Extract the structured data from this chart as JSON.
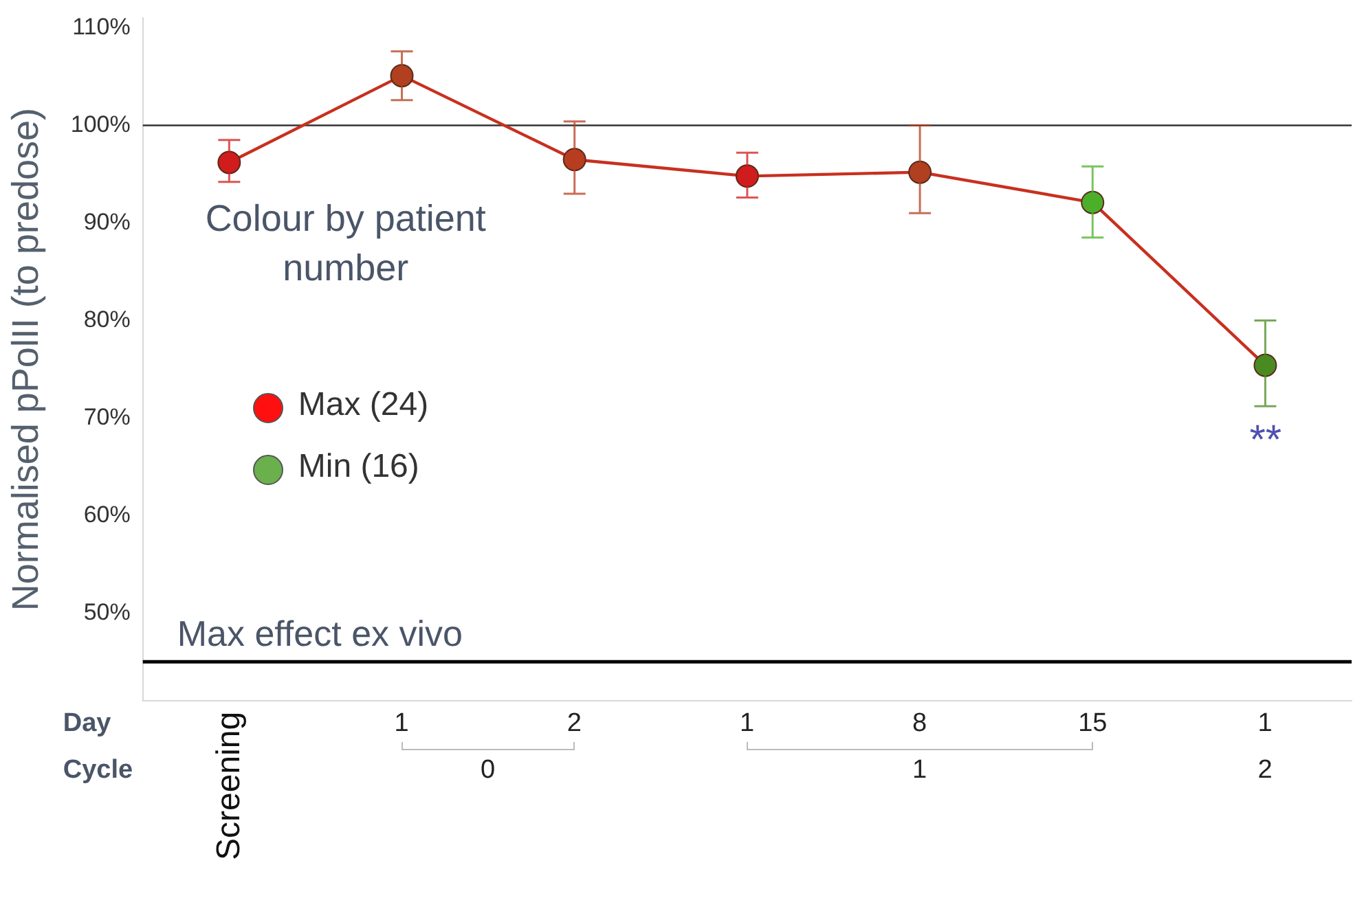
{
  "chart_data": {
    "type": "line",
    "ylabel": "Normalised pPolII (to predose)",
    "legend_title": "Colour by patient number",
    "categories": [
      "Screening",
      "1",
      "2",
      "1",
      "8",
      "15",
      "1"
    ],
    "series": [
      {
        "color": "#c8301f",
        "values": [
          96.2,
          105.1,
          96.5,
          94.8,
          95.2,
          92.1,
          75.4
        ],
        "colors": [
          "#d01c1c",
          "#b0401f",
          "#b83c1f",
          "#d01c1c",
          "#b0401f",
          "#4caf2a",
          "#4a8a22"
        ],
        "errors": [
          [
            94.2,
            98.5
          ],
          [
            102.6,
            107.6
          ],
          [
            93.0,
            100.4
          ],
          [
            92.6,
            97.2
          ],
          [
            91.0,
            100.0
          ],
          [
            88.5,
            95.8
          ],
          [
            71.2,
            80.0
          ]
        ]
      }
    ],
    "ylim": [
      41,
      111
    ],
    "yticks": [
      {
        "value": 50,
        "label": "50%"
      },
      {
        "value": 60,
        "label": "60%"
      },
      {
        "value": 70,
        "label": "70%"
      },
      {
        "value": 80,
        "label": "80%"
      },
      {
        "value": 90,
        "label": "90%"
      },
      {
        "value": 100,
        "label": "100%"
      },
      {
        "value": 110,
        "label": "110%"
      }
    ],
    "ref_lines": [
      {
        "axis": "y",
        "value": 100,
        "label": null,
        "color": "#333333"
      },
      {
        "axis": "y",
        "value": 45,
        "label": "Max effect ex vivo",
        "color": "#000000"
      }
    ],
    "annotations": [
      "Max (24)",
      "Min (16)",
      "Day",
      "Cycle",
      "0",
      "1",
      "2",
      "**"
    ],
    "grid": false,
    "legend": false,
    "marker": "circle",
    "line_style": "solid"
  }
}
